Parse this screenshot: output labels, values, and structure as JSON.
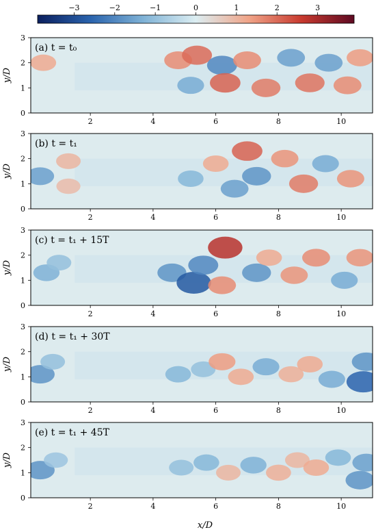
{
  "chart_data": {
    "type": "heatmap",
    "colorbar": {
      "ticks": [
        -3,
        -2,
        -1,
        0,
        1,
        2,
        3
      ],
      "tick_labels": [
        "−3",
        "−2",
        "−1",
        "0",
        "1",
        "2",
        "3"
      ],
      "range": [
        -3.9,
        3.9
      ],
      "colormap": [
        "#0b1f5e",
        "#2a63ad",
        "#7fb2d6",
        "#dceef2",
        "#f0a488",
        "#c83a2f",
        "#5e0a22"
      ],
      "placement": "top"
    },
    "xlabel": "x/D",
    "ylabel": "y/D",
    "xlim": [
      0.1,
      11.0
    ],
    "ylim": [
      0,
      3
    ],
    "xticks": [
      2,
      4,
      6,
      8,
      10
    ],
    "xtick_labels": [
      "2",
      "4",
      "6",
      "8",
      "10"
    ],
    "yticks": [
      0,
      1,
      2,
      3
    ],
    "ytick_labels": [
      "0",
      "1",
      "2",
      "3"
    ],
    "background_value": 0.05,
    "panels": [
      {
        "label": "(a) t = t₀",
        "blobs": [
          {
            "x": 0.5,
            "y": 2.0,
            "v": 1.2
          },
          {
            "x": 4.8,
            "y": 2.1,
            "v": 1.6
          },
          {
            "x": 5.4,
            "y": 2.3,
            "v": 2.0
          },
          {
            "x": 6.2,
            "y": 1.9,
            "v": -2.0
          },
          {
            "x": 5.2,
            "y": 1.1,
            "v": -1.4
          },
          {
            "x": 6.3,
            "y": 1.2,
            "v": 2.1
          },
          {
            "x": 7.0,
            "y": 2.1,
            "v": 1.6
          },
          {
            "x": 7.6,
            "y": 1.0,
            "v": 1.8
          },
          {
            "x": 8.4,
            "y": 2.2,
            "v": -1.6
          },
          {
            "x": 9.0,
            "y": 1.2,
            "v": 1.9
          },
          {
            "x": 9.6,
            "y": 2.0,
            "v": -1.6
          },
          {
            "x": 10.2,
            "y": 1.1,
            "v": 1.6
          },
          {
            "x": 10.6,
            "y": 2.2,
            "v": 1.4
          }
        ]
      },
      {
        "label": "(b) t = t₁",
        "blobs": [
          {
            "x": 0.4,
            "y": 1.3,
            "v": -1.6
          },
          {
            "x": 1.3,
            "y": 1.9,
            "v": 1.0
          },
          {
            "x": 1.3,
            "y": 0.9,
            "v": 0.9
          },
          {
            "x": 5.2,
            "y": 1.2,
            "v": -1.2
          },
          {
            "x": 6.0,
            "y": 1.8,
            "v": 1.2
          },
          {
            "x": 6.6,
            "y": 0.8,
            "v": -1.6
          },
          {
            "x": 7.0,
            "y": 2.3,
            "v": 2.1
          },
          {
            "x": 7.3,
            "y": 1.3,
            "v": -1.8
          },
          {
            "x": 8.2,
            "y": 2.0,
            "v": 1.5
          },
          {
            "x": 8.8,
            "y": 1.0,
            "v": 1.8
          },
          {
            "x": 9.5,
            "y": 1.8,
            "v": -1.4
          },
          {
            "x": 10.3,
            "y": 1.2,
            "v": 1.5
          }
        ]
      },
      {
        "label": "(c) t = t₁ + 15T",
        "blobs": [
          {
            "x": 0.6,
            "y": 1.3,
            "v": -1.3
          },
          {
            "x": 1.0,
            "y": 1.7,
            "v": -1.0
          },
          {
            "x": 4.6,
            "y": 1.3,
            "v": -1.8
          },
          {
            "x": 5.3,
            "y": 0.9,
            "v": -2.8
          },
          {
            "x": 5.6,
            "y": 1.6,
            "v": -2.0
          },
          {
            "x": 6.3,
            "y": 2.3,
            "v": 2.8
          },
          {
            "x": 6.2,
            "y": 0.8,
            "v": 1.6
          },
          {
            "x": 7.3,
            "y": 1.3,
            "v": -1.8
          },
          {
            "x": 7.7,
            "y": 1.9,
            "v": 1.2
          },
          {
            "x": 8.5,
            "y": 1.2,
            "v": 1.5
          },
          {
            "x": 9.2,
            "y": 1.9,
            "v": 1.6
          },
          {
            "x": 10.1,
            "y": 1.0,
            "v": -1.4
          },
          {
            "x": 10.6,
            "y": 1.9,
            "v": 1.5
          }
        ]
      },
      {
        "label": "(d) t = t₁ + 30T",
        "blobs": [
          {
            "x": 0.4,
            "y": 1.1,
            "v": -1.8
          },
          {
            "x": 0.8,
            "y": 1.6,
            "v": -1.0
          },
          {
            "x": 4.8,
            "y": 1.1,
            "v": -1.2
          },
          {
            "x": 5.6,
            "y": 1.3,
            "v": -1.0
          },
          {
            "x": 6.2,
            "y": 1.6,
            "v": 1.4
          },
          {
            "x": 6.8,
            "y": 1.0,
            "v": 1.2
          },
          {
            "x": 7.6,
            "y": 1.4,
            "v": -1.4
          },
          {
            "x": 8.4,
            "y": 1.1,
            "v": 1.1
          },
          {
            "x": 9.0,
            "y": 1.5,
            "v": 1.2
          },
          {
            "x": 9.7,
            "y": 0.9,
            "v": -1.4
          },
          {
            "x": 10.7,
            "y": 0.8,
            "v": -2.6
          },
          {
            "x": 10.8,
            "y": 1.6,
            "v": -1.8
          }
        ]
      },
      {
        "label": "(e) t = t₁ + 45T",
        "blobs": [
          {
            "x": 0.4,
            "y": 1.1,
            "v": -1.8
          },
          {
            "x": 0.9,
            "y": 1.5,
            "v": -0.9
          },
          {
            "x": 4.9,
            "y": 1.2,
            "v": -1.0
          },
          {
            "x": 5.7,
            "y": 1.4,
            "v": -1.2
          },
          {
            "x": 6.4,
            "y": 1.0,
            "v": 1.0
          },
          {
            "x": 7.2,
            "y": 1.3,
            "v": -1.3
          },
          {
            "x": 8.0,
            "y": 1.0,
            "v": 1.1
          },
          {
            "x": 8.6,
            "y": 1.5,
            "v": 1.0
          },
          {
            "x": 9.2,
            "y": 1.2,
            "v": 1.2
          },
          {
            "x": 9.9,
            "y": 1.6,
            "v": -1.2
          },
          {
            "x": 10.6,
            "y": 0.7,
            "v": -1.8
          },
          {
            "x": 10.8,
            "y": 1.4,
            "v": -1.6
          }
        ]
      }
    ]
  }
}
